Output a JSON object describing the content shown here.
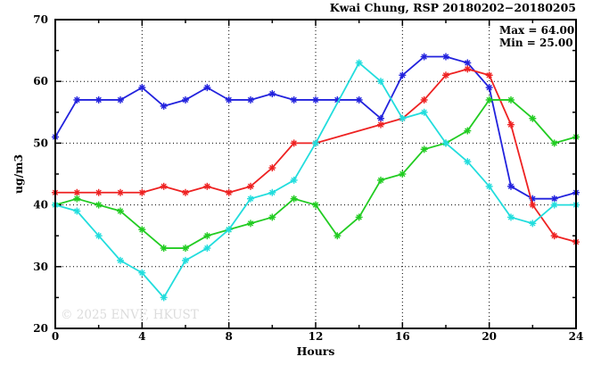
{
  "title": "Kwai Chung, RSP 20180202−20180205",
  "annotation": {
    "max_label": "Max = 64.00",
    "min_label": "Min = 25.00"
  },
  "watermark": "© 2025 ENVF, HKUST",
  "colors": {
    "blue_series": "#2222dd",
    "red_series": "#ee2222",
    "green_series": "#22cc22",
    "cyan_series": "#22dddd",
    "axis": "#000000",
    "grid": "#000000",
    "watermark": "#dcdcdc"
  },
  "chart_data": {
    "type": "line",
    "title": "Kwai Chung, RSP 20180202−20180205",
    "xlabel": "Hours",
    "ylabel": "ug/m3",
    "xlim": [
      0,
      24
    ],
    "ylim": [
      20,
      70
    ],
    "x_major_ticks": [
      0,
      4,
      8,
      12,
      16,
      20,
      24
    ],
    "x_minor_ticks": [
      2,
      6,
      10,
      14,
      18,
      22
    ],
    "y_major_ticks": [
      20,
      30,
      40,
      50,
      60,
      70
    ],
    "y_minor_ticks": [
      25,
      35,
      45,
      55,
      65
    ],
    "grid": "dotted lines at interior major ticks",
    "legend_position": "none (Max/Min annotation top-right)",
    "marker": "asterisk",
    "x": [
      0,
      1,
      2,
      3,
      4,
      5,
      6,
      7,
      8,
      9,
      10,
      11,
      12,
      13,
      14,
      15,
      16,
      17,
      18,
      19,
      20,
      21,
      22,
      23,
      24
    ],
    "series": [
      {
        "name": "blue-series",
        "color": "#2222dd",
        "values": [
          51,
          57,
          57,
          57,
          59,
          56,
          57,
          59,
          57,
          57,
          58,
          57,
          57,
          57,
          57,
          54,
          61,
          64,
          64,
          63,
          59,
          43,
          41,
          41,
          42
        ]
      },
      {
        "name": "red-series",
        "color": "#ee2222",
        "values": [
          42,
          42,
          42,
          42,
          42,
          43,
          42,
          43,
          42,
          43,
          46,
          50,
          50,
          null,
          null,
          53,
          54,
          57,
          61,
          62,
          61,
          53,
          40,
          35,
          34
        ]
      },
      {
        "name": "green-series",
        "color": "#22cc22",
        "values": [
          40,
          41,
          40,
          39,
          36,
          33,
          33,
          35,
          36,
          37,
          38,
          41,
          40,
          35,
          38,
          44,
          45,
          49,
          50,
          52,
          57,
          57,
          54,
          50,
          51
        ]
      },
      {
        "name": "cyan-series",
        "color": "#22dddd",
        "values": [
          40,
          39,
          35,
          31,
          29,
          25,
          31,
          33,
          36,
          41,
          42,
          44,
          50,
          null,
          63,
          60,
          54,
          55,
          50,
          47,
          43,
          38,
          37,
          40,
          40
        ]
      }
    ],
    "max": 64.0,
    "min": 25.0
  }
}
